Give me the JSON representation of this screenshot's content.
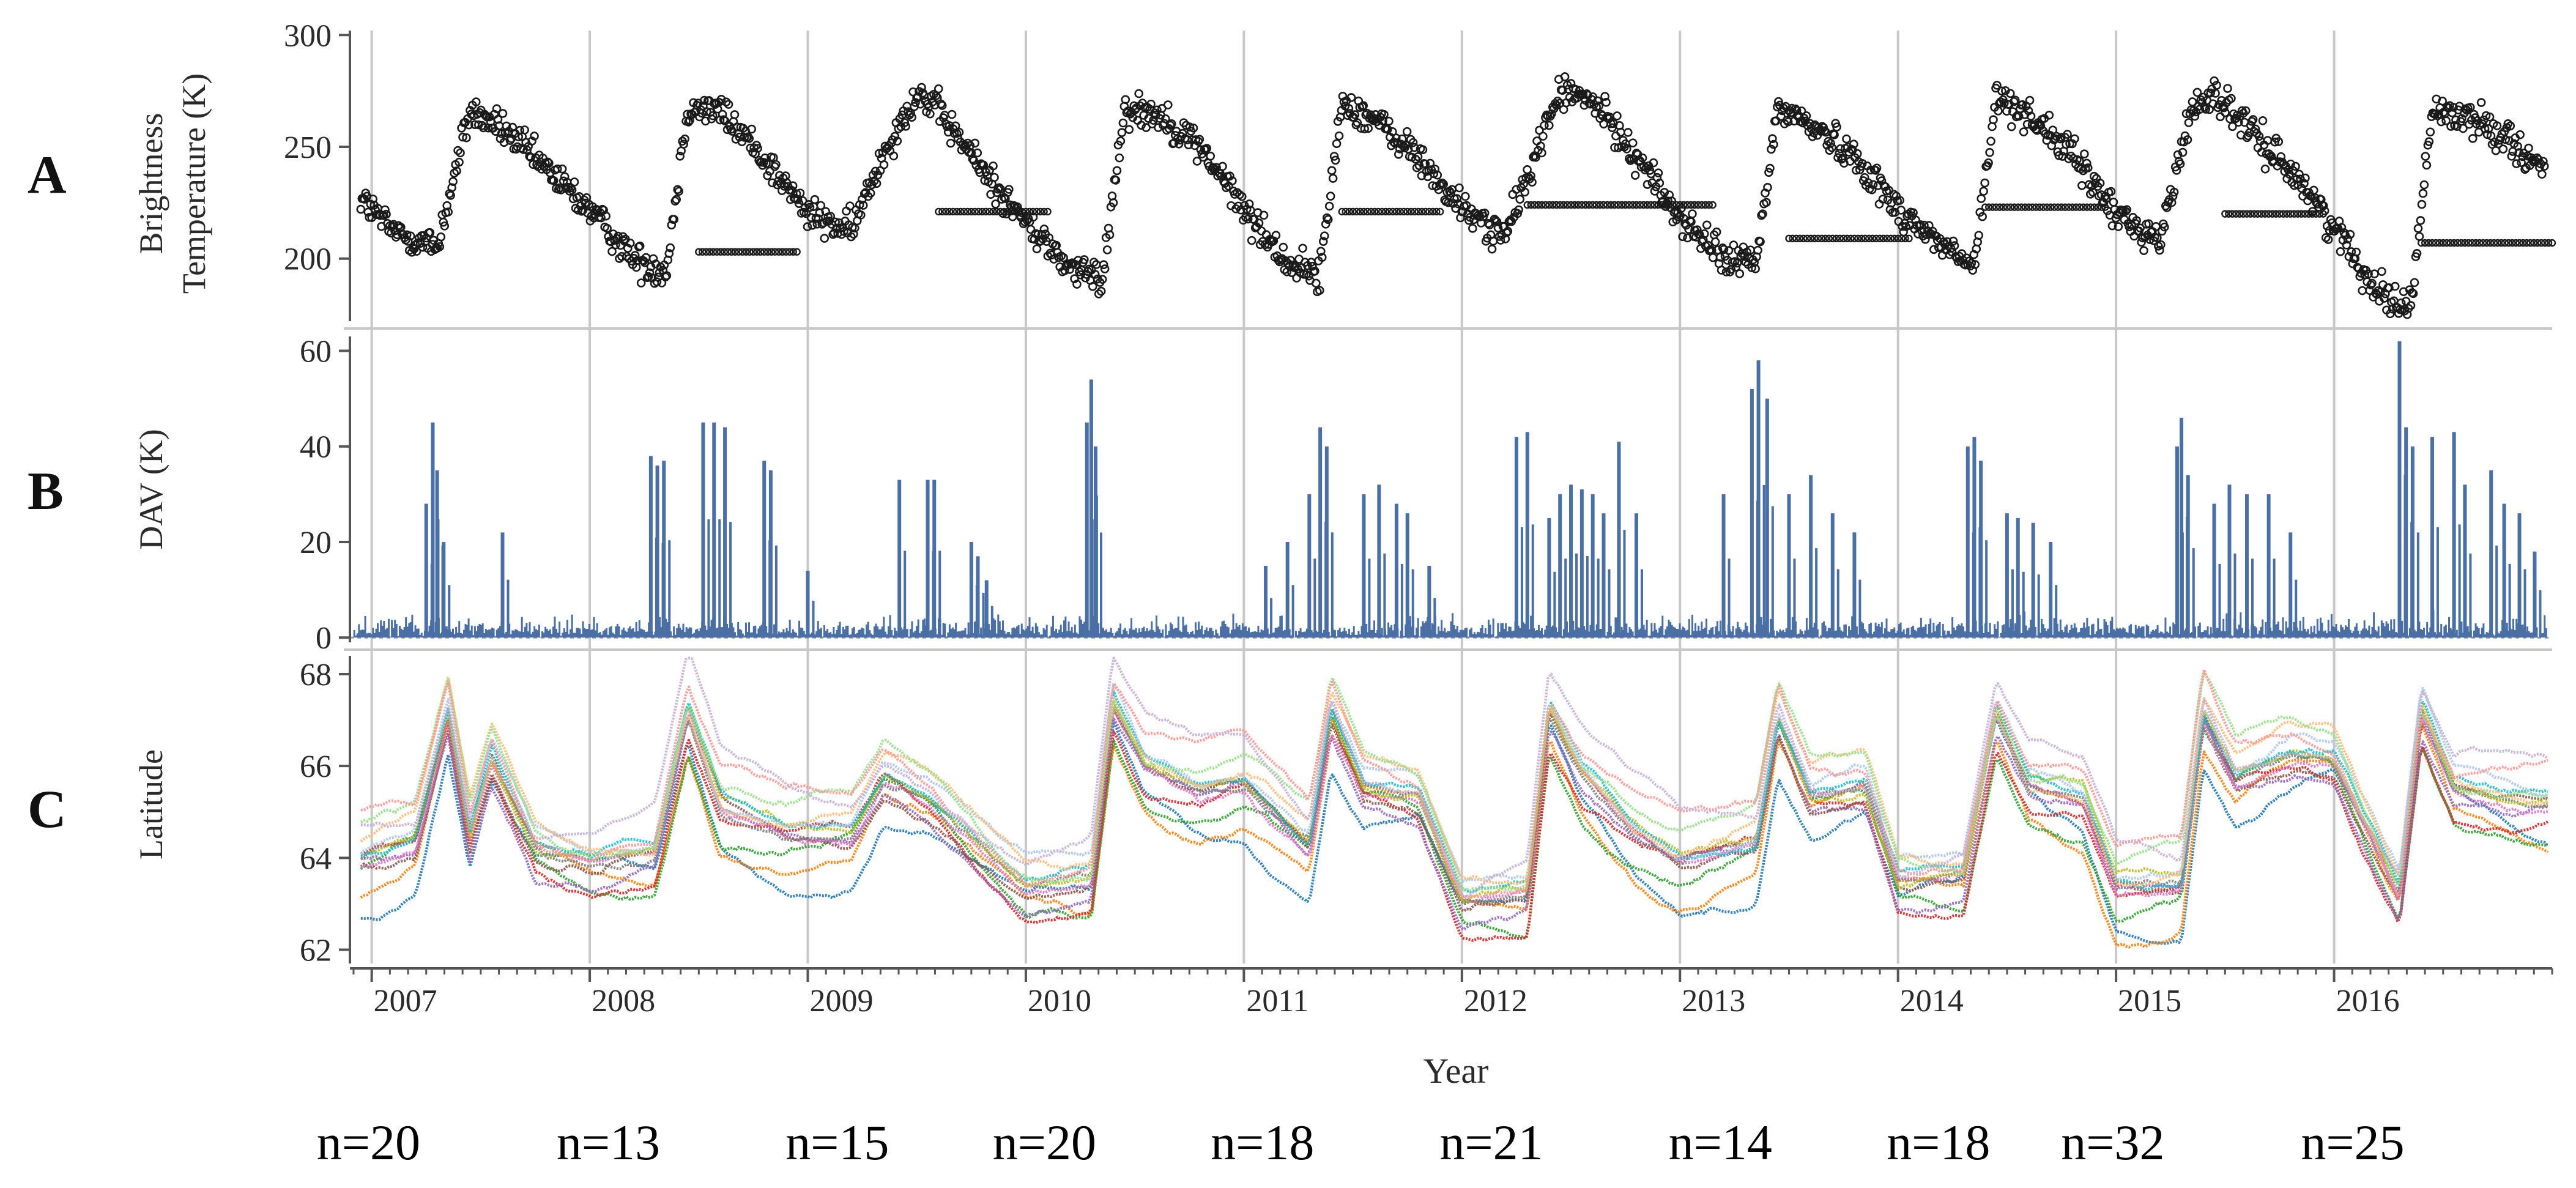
{
  "figure_title": "",
  "colors": {
    "panel_a_markers": "#1a1a1a",
    "panel_b_bars": "#4a6fa5",
    "grid": "#c8c8c8",
    "axis": "#555555",
    "latitude_palette": [
      "#1f77b4",
      "#ff7f0e",
      "#2ca02c",
      "#d62728",
      "#9467bd",
      "#8c564b",
      "#e377c2",
      "#7f7f7f",
      "#bcbd22",
      "#17becf",
      "#aec7e8",
      "#ffbb78",
      "#98df8a",
      "#ff9896",
      "#c5b0d5"
    ]
  },
  "x_axis": {
    "label": "Year",
    "tick_labels": [
      "2007",
      "2008",
      "2009",
      "2010",
      "2011",
      "2012",
      "2013",
      "2014",
      "2015",
      "2016"
    ],
    "range": [
      2006.9,
      2017.0
    ]
  },
  "counts": {
    "labels": [
      "n=20",
      "n=13",
      "n=15",
      "n=20",
      "n=18",
      "n=21",
      "n=14",
      "n=18",
      "n=32",
      "n=25"
    ],
    "positions": [
      2007.35,
      2008.45,
      2009.5,
      2010.45,
      2011.45,
      2012.5,
      2013.55,
      2014.55,
      2015.35,
      2016.45
    ]
  },
  "chart_data": [
    {
      "panel": "A",
      "type": "scatter",
      "ylabel_line1": "Brightness",
      "ylabel_line2": "Temperature (K)",
      "ylim": [
        172,
        302
      ],
      "yticks": [
        "200",
        "250",
        "300"
      ],
      "yticks_values": [
        200,
        250,
        300
      ],
      "grid": "vertical at year boundaries",
      "seasonal_cycle_anchors": {
        "x": [
          2006.9,
          2007.1,
          2007.3,
          2007.45,
          2007.6,
          2007.8,
          2008.0,
          2008.2,
          2008.35,
          2008.45,
          2008.6,
          2008.8,
          2009.0,
          2009.2,
          2009.35,
          2009.5,
          2009.6,
          2009.8,
          2010.0,
          2010.2,
          2010.35,
          2010.45,
          2010.6,
          2010.8,
          2011.0,
          2011.2,
          2011.35,
          2011.45,
          2011.6,
          2011.8,
          2012.0,
          2012.2,
          2012.35,
          2012.45,
          2012.6,
          2012.8,
          2013.0,
          2013.2,
          2013.35,
          2013.45,
          2013.6,
          2013.8,
          2014.0,
          2014.2,
          2014.35,
          2014.45,
          2014.6,
          2014.8,
          2015.0,
          2015.2,
          2015.35,
          2015.45,
          2015.6,
          2015.8,
          2016.0,
          2016.2,
          2016.35,
          2016.45,
          2016.6,
          2016.8,
          2017.0
        ],
        "y": [
          232,
          212,
          205,
          266,
          258,
          240,
          222,
          200,
          194,
          268,
          266,
          245,
          220,
          212,
          248,
          274,
          266,
          240,
          216,
          196,
          190,
          267,
          265,
          250,
          222,
          198,
          193,
          270,
          262,
          245,
          222,
          210,
          250,
          275,
          270,
          246,
          218,
          200,
          198,
          268,
          260,
          246,
          222,
          206,
          196,
          272,
          265,
          246,
          220,
          208,
          268,
          274,
          258,
          240,
          214,
          186,
          178,
          266,
          264,
          254,
          236
        ]
      },
      "flat_segments": [
        {
          "x": [
            2008.5,
            2008.95
          ],
          "y": 203
        },
        {
          "x": [
            2009.6,
            2010.1
          ],
          "y": 221
        },
        {
          "x": [
            2011.45,
            2011.9
          ],
          "y": 221
        },
        {
          "x": [
            2012.3,
            2013.15
          ],
          "y": 224
        },
        {
          "x": [
            2013.5,
            2014.05
          ],
          "y": 209
        },
        {
          "x": [
            2014.4,
            2014.95
          ],
          "y": 223
        },
        {
          "x": [
            2015.5,
            2015.95
          ],
          "y": 220
        },
        {
          "x": [
            2016.4,
            2017.0
          ],
          "y": 207
        }
      ]
    },
    {
      "panel": "B",
      "type": "bar",
      "ylabel": "DAV (K)",
      "ylim": [
        -1,
        63
      ],
      "yticks": [
        "0",
        "20",
        "40",
        "60"
      ],
      "yticks_values": [
        0,
        20,
        40,
        60
      ],
      "baseline_noise_max": 4,
      "spikes": {
        "x": [
          2007.25,
          2007.28,
          2007.3,
          2007.33,
          2007.6,
          2008.28,
          2008.31,
          2008.34,
          2008.52,
          2008.57,
          2008.62,
          2008.8,
          2008.83,
          2009.0,
          2009.42,
          2009.55,
          2009.58,
          2009.75,
          2009.78,
          2009.82,
          2010.28,
          2010.3,
          2010.32,
          2011.1,
          2011.2,
          2011.3,
          2011.35,
          2011.38,
          2011.55,
          2011.62,
          2011.7,
          2011.75,
          2011.85,
          2012.25,
          2012.3,
          2012.4,
          2012.45,
          2012.5,
          2012.55,
          2012.6,
          2012.65,
          2012.72,
          2012.8,
          2013.2,
          2013.33,
          2013.36,
          2013.4,
          2013.5,
          2013.6,
          2013.7,
          2013.8,
          2014.32,
          2014.35,
          2014.38,
          2014.5,
          2014.55,
          2014.62,
          2014.7,
          2015.28,
          2015.3,
          2015.33,
          2015.45,
          2015.52,
          2015.6,
          2015.7,
          2015.8,
          2016.3,
          2016.33,
          2016.36,
          2016.45,
          2016.55,
          2016.6,
          2016.72,
          2016.78,
          2016.85,
          2016.92
        ],
        "y": [
          28,
          45,
          35,
          20,
          22,
          38,
          36,
          37,
          45,
          45,
          44,
          37,
          35,
          14,
          33,
          33,
          33,
          20,
          17,
          12,
          45,
          54,
          40,
          15,
          20,
          30,
          44,
          40,
          30,
          32,
          28,
          26,
          15,
          42,
          43,
          25,
          30,
          32,
          31,
          30,
          26,
          41,
          26,
          30,
          52,
          58,
          50,
          30,
          34,
          26,
          22,
          40,
          42,
          37,
          26,
          25,
          24,
          20,
          40,
          46,
          34,
          28,
          32,
          30,
          30,
          22,
          62,
          44,
          40,
          42,
          43,
          32,
          35,
          28,
          26,
          18
        ]
      }
    },
    {
      "panel": "C",
      "type": "line",
      "ylabel": "Latitude",
      "ylim": [
        61.7,
        68.4
      ],
      "yticks": [
        "62",
        "64",
        "66",
        "68"
      ],
      "yticks_values": [
        62,
        64,
        66,
        68
      ],
      "series_count": 15,
      "migration_anchors": {
        "x": [
          2006.9,
          2007.2,
          2007.35,
          2007.45,
          2007.55,
          2007.75,
          2008.0,
          2008.3,
          2008.45,
          2008.6,
          2008.9,
          2009.2,
          2009.35,
          2009.55,
          2009.8,
          2010.0,
          2010.3,
          2010.4,
          2010.55,
          2010.8,
          2011.0,
          2011.3,
          2011.4,
          2011.55,
          2011.8,
          2012.0,
          2012.3,
          2012.4,
          2012.55,
          2012.8,
          2013.0,
          2013.35,
          2013.45,
          2013.6,
          2013.85,
          2014.0,
          2014.3,
          2014.45,
          2014.6,
          2014.85,
          2015.0,
          2015.3,
          2015.4,
          2015.55,
          2015.8,
          2016.0,
          2016.3,
          2016.4,
          2016.55,
          2016.8,
          2017.0
        ],
        "y": [
          64.0,
          64.4,
          67.2,
          64.5,
          66.2,
          64.2,
          63.9,
          64.1,
          67.2,
          65.2,
          64.6,
          64.6,
          65.8,
          65.3,
          64.2,
          63.4,
          63.6,
          67.4,
          66.0,
          65.5,
          65.7,
          64.4,
          67.2,
          65.6,
          65.4,
          63.1,
          63.2,
          67.2,
          65.8,
          64.6,
          64.0,
          64.4,
          67.1,
          65.4,
          65.6,
          63.5,
          63.6,
          67.1,
          65.6,
          65.2,
          63.4,
          63.5,
          67.2,
          65.8,
          66.3,
          66.2,
          63.2,
          67.2,
          65.6,
          65.3,
          65.2
        ]
      }
    }
  ]
}
